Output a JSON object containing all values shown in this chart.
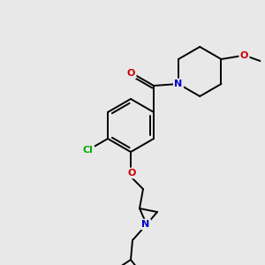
{
  "bg_color": "#e8e8e8",
  "atom_colors": {
    "C": "#000000",
    "N": "#0000cc",
    "O": "#cc0000",
    "Cl": "#00aa00"
  },
  "bond_color": "#000000",
  "bond_width": 1.4,
  "figsize": [
    3.0,
    3.0
  ],
  "dpi": 100,
  "scale": 1.0
}
